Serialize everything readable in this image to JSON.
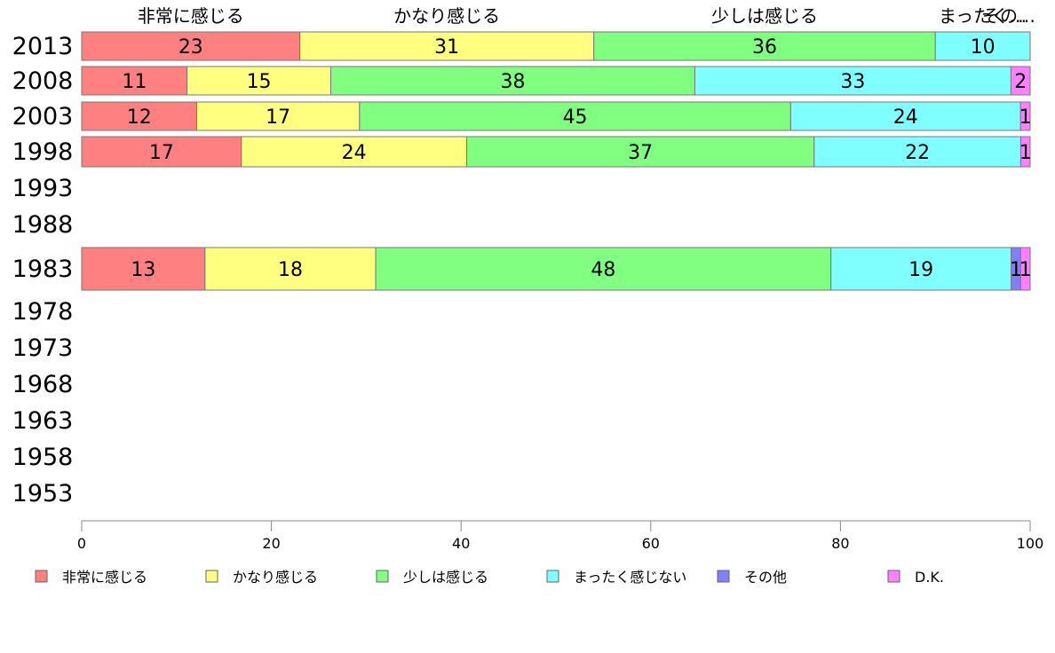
{
  "chart_data": {
    "type": "bar",
    "orientation": "horizontal",
    "stacked": true,
    "percent": true,
    "categories": [
      "1953",
      "1958",
      "1963",
      "1968",
      "1973",
      "1978",
      "1983",
      "1988",
      "1993",
      "1998",
      "2003",
      "2008",
      "2013"
    ],
    "series": [
      {
        "name": "非常に感じる",
        "color": "#ff8080",
        "values": [
          null,
          null,
          null,
          null,
          null,
          null,
          13,
          null,
          null,
          17,
          12,
          11,
          23
        ]
      },
      {
        "name": "かなり感じる",
        "color": "#ffff80",
        "values": [
          null,
          null,
          null,
          null,
          null,
          null,
          18,
          null,
          null,
          24,
          17,
          15,
          31
        ]
      },
      {
        "name": "少しは感じる",
        "color": "#80ff80",
        "values": [
          null,
          null,
          null,
          null,
          null,
          null,
          48,
          null,
          null,
          37,
          45,
          38,
          36
        ]
      },
      {
        "name": "まったく感じない",
        "color": "#80ffff",
        "values": [
          null,
          null,
          null,
          null,
          null,
          null,
          19,
          null,
          null,
          22,
          24,
          33,
          10
        ]
      },
      {
        "name": "その他",
        "color": "#8080ff",
        "values": [
          null,
          null,
          null,
          null,
          null,
          null,
          1,
          null,
          null,
          0,
          0,
          0,
          0
        ]
      },
      {
        "name": "D.K.",
        "color": "#ff80ff",
        "values": [
          null,
          null,
          null,
          null,
          null,
          null,
          1,
          null,
          null,
          1,
          1,
          2,
          0
        ]
      }
    ],
    "top_labels": [
      "非常に感じる",
      "かなり感じる",
      "少しは感じる",
      "まったく…",
      "その…"
    ],
    "xlim": [
      0,
      100
    ],
    "xticks": [
      0,
      20,
      40,
      60,
      80,
      100
    ],
    "grid": false,
    "legend_position": "bottom"
  }
}
